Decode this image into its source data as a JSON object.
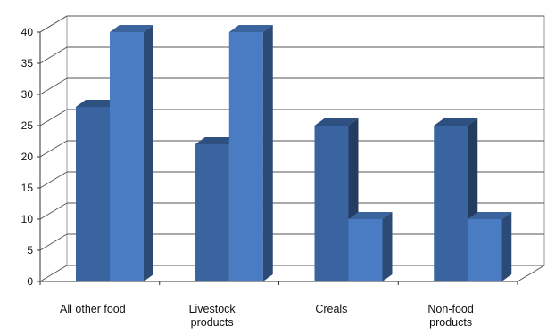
{
  "chart_data": {
    "type": "bar",
    "categories": [
      "All other food",
      "Livestock products",
      "Creals",
      "Non-food products"
    ],
    "category_lines": [
      [
        "All other food"
      ],
      [
        "Livestock",
        "products"
      ],
      [
        "Creals"
      ],
      [
        "Non-food",
        "products"
      ]
    ],
    "series": [
      {
        "values": [
          28,
          22,
          25,
          25
        ],
        "color": "#3a64a0"
      },
      {
        "values": [
          40,
          40,
          10,
          10
        ],
        "color": "#4a7cc4"
      }
    ],
    "yticks": [
      0,
      5,
      10,
      15,
      20,
      25,
      30,
      35,
      40
    ],
    "ylim": [
      0,
      40
    ],
    "grid": true,
    "legend": "none",
    "style": "3d-clustered-column"
  }
}
